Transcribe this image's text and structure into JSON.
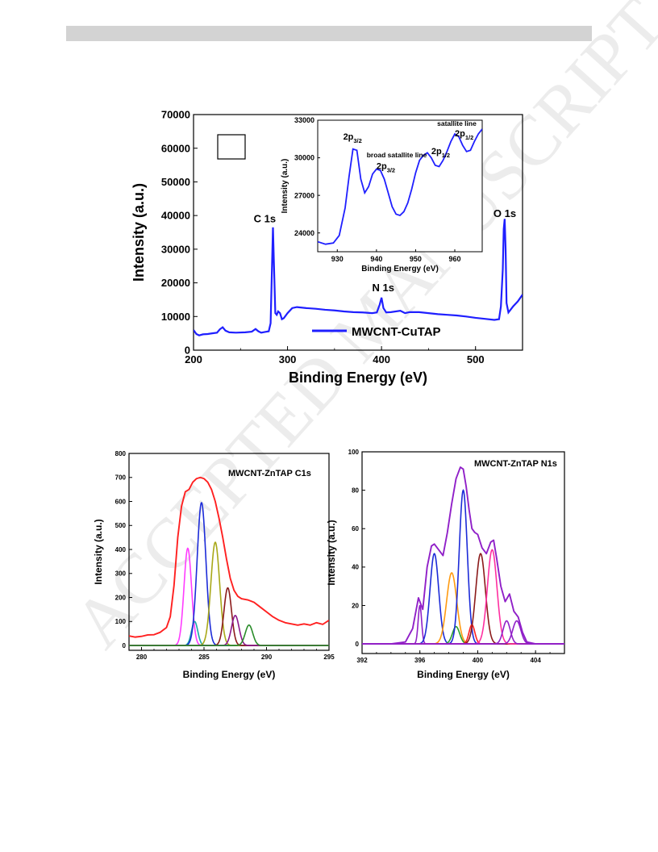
{
  "watermark": "ACCEPTED MANUSCRIPT",
  "chart_data": [
    {
      "id": "survey",
      "type": "line",
      "title": "",
      "xlabel": "Binding Energy (eV)",
      "ylabel": "Intensity (a.u.)",
      "xlim": [
        200,
        550
      ],
      "ylim": [
        0,
        70000
      ],
      "xticks": [
        200,
        300,
        400,
        500
      ],
      "yticks": [
        0,
        10000,
        20000,
        30000,
        40000,
        50000,
        60000,
        70000
      ],
      "legend": {
        "position": "bottom-right",
        "color": "#1f1fff"
      },
      "annotations": [
        {
          "text": "C 1s",
          "x": 264,
          "y": 38000
        },
        {
          "text": "N 1s",
          "x": 390,
          "y": 17500
        },
        {
          "text": "O 1s",
          "x": 519,
          "y": 39500
        }
      ],
      "series": [
        {
          "name": "MWCNT-CuTAP",
          "color": "#1f1fff",
          "x": [
            200,
            203,
            206,
            210,
            215,
            220,
            225,
            228,
            231,
            234,
            238,
            245,
            255,
            262,
            266,
            269,
            272,
            276,
            280,
            282,
            283.5,
            284.5,
            285.5,
            287,
            288.5,
            290,
            292,
            294,
            296,
            300,
            305,
            310,
            320,
            330,
            340,
            350,
            360,
            370,
            380,
            390,
            395,
            398,
            400,
            402,
            405,
            410,
            420,
            425,
            430,
            440,
            450,
            460,
            470,
            480,
            490,
            500,
            510,
            520,
            525,
            527,
            529,
            530,
            531,
            532,
            533,
            535,
            540,
            545,
            550
          ],
          "y": [
            6000,
            4800,
            4400,
            4700,
            4800,
            5000,
            5200,
            6200,
            6800,
            5800,
            5300,
            5200,
            5300,
            5500,
            6300,
            5600,
            5200,
            5400,
            5600,
            8000,
            25000,
            36500,
            26000,
            11000,
            10500,
            11500,
            11000,
            9200,
            9500,
            11000,
            12500,
            12800,
            12500,
            12300,
            12000,
            11800,
            11500,
            11300,
            11200,
            11000,
            11200,
            13500,
            15600,
            12500,
            11200,
            11300,
            11700,
            11000,
            11300,
            11300,
            11000,
            10700,
            10500,
            10300,
            10000,
            9600,
            9300,
            9000,
            9200,
            13000,
            24000,
            36000,
            39000,
            30000,
            14000,
            11200,
            13000,
            14500,
            16500
          ]
        }
      ]
    },
    {
      "id": "inset",
      "type": "line",
      "title": "",
      "xlabel": "Binding Energy (eV)",
      "ylabel": "Intensity (a.u.)",
      "xlim": [
        925,
        967
      ],
      "ylim": [
        22500,
        33000
      ],
      "xticks": [
        930,
        940,
        950,
        960
      ],
      "yticks": [
        24000,
        27000,
        30000,
        33000
      ],
      "annotations": [
        {
          "text": "2p",
          "sub": "3/2",
          "x": 931.5,
          "y": 31450
        },
        {
          "text": "broad satallite line",
          "x": 937.5,
          "y": 30050
        },
        {
          "text": "2p",
          "sub": "3/2",
          "x": 940,
          "y": 29100
        },
        {
          "text": "2p",
          "sub": "1/2",
          "x": 954,
          "y": 30300
        },
        {
          "text": "satallite line",
          "x": 955.5,
          "y": 32550
        },
        {
          "text": "2p",
          "sub": "1/2",
          "x": 960,
          "y": 31700
        }
      ],
      "series": [
        {
          "name": "",
          "color": "#1f1fff",
          "x": [
            925,
            927,
            929,
            930.5,
            932,
            933,
            934,
            935,
            936,
            937,
            938,
            939,
            940,
            941,
            942,
            943,
            944,
            945,
            946,
            947,
            948,
            949,
            950,
            951,
            952,
            953,
            954,
            955,
            956,
            957,
            958,
            959,
            960,
            961,
            962,
            963,
            964,
            965,
            966,
            967
          ],
          "y": [
            23300,
            23100,
            23200,
            23800,
            26000,
            28500,
            30700,
            30600,
            28300,
            27200,
            27700,
            28700,
            29100,
            29000,
            28300,
            27200,
            26100,
            25500,
            25400,
            25700,
            26400,
            27500,
            28800,
            29800,
            30200,
            30400,
            30000,
            29400,
            29300,
            29800,
            30500,
            31300,
            31900,
            31700,
            31000,
            30500,
            30600,
            31300,
            31900,
            32300
          ]
        }
      ]
    },
    {
      "id": "c1s",
      "type": "line",
      "title": "MWCNT-ZnTAP C1s",
      "xlabel": "Binding Energy (eV)",
      "ylabel": "Intensity (a.u.)",
      "xlim": [
        279,
        295
      ],
      "ylim": [
        -20,
        800
      ],
      "xticks": [
        280,
        285,
        290,
        295
      ],
      "yticks": [
        0,
        100,
        200,
        300,
        400,
        500,
        600,
        700,
        800
      ],
      "envelope": {
        "color": "#ff2020",
        "x": [
          279,
          279.5,
          280,
          280.5,
          281,
          281.5,
          282,
          282.3,
          282.6,
          282.9,
          283.2,
          283.5,
          283.8,
          284.1,
          284.4,
          284.7,
          285,
          285.3,
          285.6,
          285.9,
          286.2,
          286.5,
          286.8,
          287.1,
          287.4,
          287.7,
          288,
          288.5,
          289,
          289.5,
          290,
          290.5,
          291,
          291.5,
          292,
          292.5,
          293,
          293.5,
          294,
          294.5,
          295
        ],
        "y": [
          40,
          35,
          38,
          44,
          45,
          55,
          75,
          120,
          250,
          450,
          580,
          640,
          650,
          680,
          695,
          700,
          695,
          680,
          650,
          600,
          530,
          450,
          360,
          280,
          230,
          205,
          195,
          190,
          180,
          160,
          140,
          120,
          105,
          95,
          90,
          85,
          90,
          85,
          95,
          88,
          105
        ]
      },
      "peaks": [
        {
          "center": 283.7,
          "height": 405,
          "sigma": 0.3,
          "color": "#ff3cff"
        },
        {
          "center": 284.25,
          "height": 100,
          "sigma": 0.25,
          "color": "#19a8a8"
        },
        {
          "center": 284.8,
          "height": 595,
          "sigma": 0.35,
          "color": "#1c2bd8"
        },
        {
          "center": 285.9,
          "height": 430,
          "sigma": 0.35,
          "color": "#a8a818"
        },
        {
          "center": 286.9,
          "height": 240,
          "sigma": 0.3,
          "color": "#8b1a1a"
        },
        {
          "center": 287.5,
          "height": 125,
          "sigma": 0.3,
          "color": "#8b168b"
        },
        {
          "center": 288.6,
          "height": 85,
          "sigma": 0.3,
          "color": "#2a8c2a"
        }
      ],
      "baseline": {
        "value": 0,
        "color": "#19a8a8"
      }
    },
    {
      "id": "n1s",
      "type": "line",
      "title": "MWCNT-ZnTAP N1s",
      "xlabel": "Binding Energy (eV)",
      "ylabel": "Intensity (a.u.)",
      "xlim": [
        392,
        406
      ],
      "ylim": [
        -5,
        100
      ],
      "xticks": [
        392,
        396,
        400,
        404
      ],
      "yticks": [
        0,
        20,
        40,
        60,
        80,
        100
      ],
      "envelope": {
        "color": "#9020c8",
        "x": [
          392,
          394,
          395,
          395.5,
          395.9,
          396.2,
          396.5,
          396.8,
          397,
          397.3,
          397.6,
          397.9,
          398.2,
          398.5,
          398.8,
          399,
          399.2,
          399.4,
          399.6,
          399.8,
          400,
          400.3,
          400.6,
          400.9,
          401.1,
          401.3,
          401.6,
          401.9,
          402.2,
          402.5,
          402.8,
          403.1,
          403.4,
          404,
          406
        ],
        "y": [
          0,
          0,
          1,
          8,
          24,
          18,
          40,
          51,
          52,
          49,
          46,
          58,
          73,
          86,
          92,
          91,
          82,
          70,
          60,
          58,
          57,
          50,
          47,
          53,
          54,
          45,
          30,
          22,
          26,
          17,
          14,
          6,
          1,
          0,
          0
        ]
      },
      "peaks": [
        {
          "center": 396.0,
          "height": 20,
          "sigma": 0.12,
          "color": "#9020c8"
        },
        {
          "center": 397.0,
          "height": 47,
          "sigma": 0.3,
          "color": "#1c2bd8"
        },
        {
          "center": 398.2,
          "height": 37,
          "sigma": 0.35,
          "color": "#ff9a10"
        },
        {
          "center": 398.5,
          "height": 9,
          "sigma": 0.25,
          "color": "#2aa02a"
        },
        {
          "center": 399.0,
          "height": 80,
          "sigma": 0.28,
          "color": "#1c2bd8"
        },
        {
          "center": 399.6,
          "height": 10,
          "sigma": 0.2,
          "color": "#ff2020"
        },
        {
          "center": 400.2,
          "height": 47,
          "sigma": 0.33,
          "color": "#8b1a1a"
        },
        {
          "center": 401.0,
          "height": 49,
          "sigma": 0.33,
          "color": "#ff2fa0"
        },
        {
          "center": 402.0,
          "height": 12,
          "sigma": 0.25,
          "color": "#9020c8"
        },
        {
          "center": 402.7,
          "height": 12,
          "sigma": 0.28,
          "color": "#9020c8"
        }
      ],
      "baseline": {
        "value": 0,
        "color": "#ff2020"
      }
    }
  ]
}
